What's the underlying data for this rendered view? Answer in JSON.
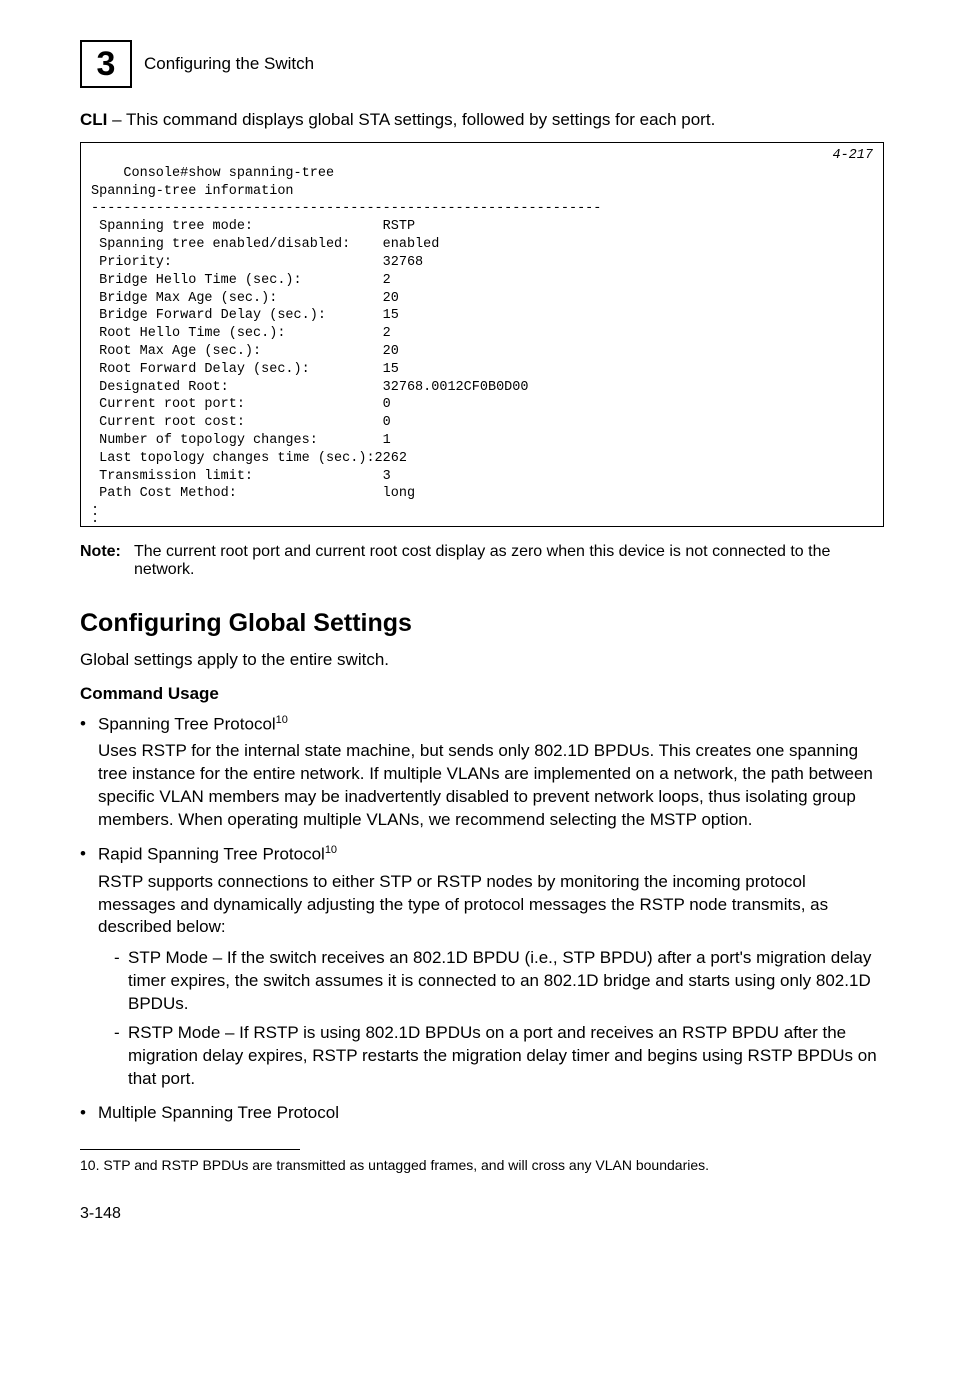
{
  "header": {
    "chapter_number": "3",
    "title": "Configuring the Switch"
  },
  "cli_intro": {
    "label": "CLI",
    "text": " – This command displays global STA settings, followed by settings for each port."
  },
  "console": {
    "ref": "4-217",
    "lines": [
      "Console#show spanning-tree",
      "Spanning-tree information",
      "---------------------------------------------------------------",
      " Spanning tree mode:                RSTP",
      " Spanning tree enabled/disabled:    enabled",
      " Priority:                          32768",
      " Bridge Hello Time (sec.):          2",
      " Bridge Max Age (sec.):             20",
      " Bridge Forward Delay (sec.):       15",
      " Root Hello Time (sec.):            2",
      " Root Max Age (sec.):               20",
      " Root Forward Delay (sec.):         15",
      " Designated Root:                   32768.0012CF0B0D00",
      " Current root port:                 0",
      " Current root cost:                 0",
      " Number of topology changes:        1",
      " Last topology changes time (sec.):2262",
      " Transmission limit:                3",
      " Path Cost Method:                  long"
    ]
  },
  "note": {
    "label": "Note:",
    "body": "The current root port and current root cost display as zero when this device is not connected to the network."
  },
  "section": {
    "heading": "Configuring Global Settings",
    "intro": "Global settings apply to the entire switch.",
    "cmd_usage": "Command Usage"
  },
  "bullets": {
    "b1": {
      "title": "Spanning Tree Protocol",
      "sup": "10",
      "body": "Uses RSTP for the internal state machine, but sends only 802.1D BPDUs. This creates one spanning tree instance for the entire network. If multiple VLANs are implemented on a network, the path between specific VLAN members may be inadvertently disabled to prevent network loops, thus isolating group members. When operating multiple VLANs, we recommend selecting the MSTP option."
    },
    "b2": {
      "title": "Rapid Spanning Tree Protocol",
      "sup": "10",
      "body": "RSTP supports connections to either STP or RSTP nodes by monitoring the incoming protocol messages and dynamically adjusting the type of protocol messages the RSTP node transmits, as described below:",
      "sub1": "STP Mode – If the switch receives an 802.1D BPDU (i.e., STP BPDU) after a port's migration delay timer expires, the switch assumes it is connected to an 802.1D bridge and starts using only 802.1D BPDUs.",
      "sub2": "RSTP Mode – If RSTP is using 802.1D BPDUs on a port and receives an RSTP BPDU after the migration delay expires, RSTP restarts the migration delay timer and begins using RSTP BPDUs on that port."
    },
    "b3": {
      "title": "Multiple Spanning Tree Protocol"
    }
  },
  "footnote": {
    "num": "10.",
    "text": " STP and RSTP BPDUs are transmitted as untagged frames, and will cross any VLAN boundaries."
  },
  "page_number": "3-148"
}
